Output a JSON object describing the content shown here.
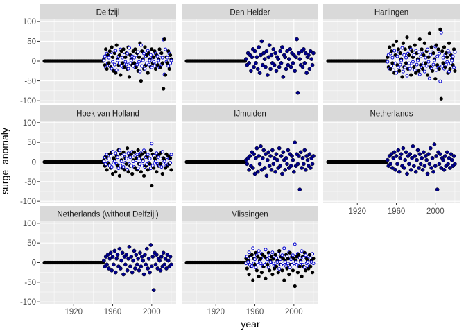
{
  "chart_data": {
    "type": "scatter",
    "xlabel": "year",
    "ylabel": "surge_anomaly",
    "xlim": [
      1885,
      2025
    ],
    "ylim": [
      -105,
      105
    ],
    "x_ticks": [
      1920,
      1960,
      2000
    ],
    "y_ticks": [
      -100,
      -50,
      0,
      50,
      100
    ],
    "grid": true,
    "colors": {
      "panel_background": "#ebebeb",
      "strip_background": "#d9d9d9",
      "grid_major": "#ffffff",
      "point_fill_a": "#000000",
      "point_fill_b": "#00008b",
      "point_open_b": "#ffffff",
      "point_outline_b": "#0000cd"
    },
    "panels": [
      {
        "title": "Delfzijl",
        "style": "mixed",
        "y": [
          5,
          -10,
          30,
          -20,
          15,
          -5,
          25,
          -15,
          35,
          10,
          -25,
          20,
          -30,
          40,
          5,
          -10,
          15,
          -35,
          25,
          -5,
          30,
          -15,
          10,
          20,
          -20,
          35,
          -40,
          15,
          5,
          -10,
          25,
          -5,
          30,
          -15,
          20,
          -25,
          10,
          45,
          -50,
          25,
          5,
          -20,
          35,
          -10,
          15,
          -30,
          20,
          5,
          -15,
          30,
          -5,
          10,
          25,
          -20,
          15,
          -10,
          5,
          30,
          -15,
          20,
          -5,
          -70,
          55,
          -35,
          10,
          -5,
          25,
          -20,
          15,
          5
        ]
      },
      {
        "title": "Den Helder",
        "style": "solid",
        "y": [
          5,
          -10,
          20,
          -5,
          15,
          -25,
          10,
          30,
          -15,
          25,
          -5,
          10,
          -20,
          35,
          -30,
          15,
          50,
          -10,
          20,
          5,
          -15,
          25,
          -35,
          10,
          40,
          -20,
          15,
          -5,
          30,
          -10,
          20,
          -25,
          10,
          5,
          -15,
          25,
          -5,
          35,
          -40,
          15,
          10,
          -20,
          25,
          -10,
          5,
          30,
          -15,
          20,
          -5,
          15,
          -25,
          10,
          55,
          -80,
          20,
          5,
          -10,
          25,
          -15,
          30,
          -5,
          20,
          -30,
          10,
          15,
          -20,
          25,
          5,
          -10,
          20
        ]
      },
      {
        "title": "Harlingen",
        "style": "mixed",
        "y": [
          10,
          -15,
          35,
          -20,
          25,
          -5,
          40,
          -30,
          15,
          50,
          -10,
          30,
          -25,
          20,
          5,
          -40,
          45,
          -15,
          30,
          -5,
          60,
          -20,
          15,
          35,
          -35,
          25,
          10,
          -15,
          40,
          -30,
          20,
          5,
          -25,
          55,
          -10,
          30,
          -20,
          15,
          45,
          -5,
          25,
          -35,
          10,
          70,
          -15,
          35,
          -25,
          20,
          5,
          -45,
          40,
          -10,
          30,
          -20,
          80,
          -95,
          25,
          -5,
          35,
          -15,
          20,
          10,
          -30,
          45,
          -20,
          15,
          5,
          -10,
          30,
          -25
        ]
      },
      {
        "title": "Hoek van Holland",
        "style": "mixed",
        "y": [
          5,
          -10,
          15,
          -20,
          10,
          -5,
          20,
          -15,
          25,
          -30,
          10,
          5,
          -25,
          15,
          -10,
          30,
          -35,
          20,
          5,
          -15,
          25,
          -20,
          10,
          -5,
          35,
          -25,
          15,
          -10,
          20,
          -30,
          5,
          25,
          -15,
          10,
          -20,
          30,
          -5,
          15,
          -25,
          20,
          5,
          -35,
          25,
          -10,
          15,
          -20,
          10,
          -5,
          30,
          -60,
          20,
          -15,
          10,
          5,
          -25,
          15,
          -10,
          20,
          -5,
          25,
          -30,
          10,
          5,
          -15,
          20,
          -10,
          15,
          -5,
          10,
          -20
        ]
      },
      {
        "title": "IJmuiden",
        "style": "solid",
        "y": [
          5,
          -5,
          10,
          -20,
          15,
          -10,
          25,
          -15,
          20,
          -30,
          10,
          35,
          -25,
          15,
          -5,
          40,
          -20,
          10,
          30,
          -15,
          20,
          -35,
          5,
          25,
          -10,
          15,
          -20,
          30,
          -5,
          10,
          -25,
          20,
          5,
          -15,
          35,
          -10,
          15,
          -30,
          25,
          5,
          -20,
          10,
          -5,
          30,
          -15,
          20,
          -10,
          15,
          5,
          -25,
          50,
          -10,
          20,
          -5,
          15,
          -70,
          25,
          -15,
          10,
          -5,
          30,
          -20,
          15,
          5,
          -10,
          20,
          -15,
          10,
          -5,
          15
        ]
      },
      {
        "title": "Netherlands",
        "style": "solid",
        "y": [
          5,
          -10,
          15,
          -5,
          20,
          -15,
          10,
          25,
          -20,
          15,
          -5,
          30,
          -25,
          10,
          20,
          -10,
          35,
          -15,
          5,
          25,
          -30,
          15,
          -5,
          20,
          -20,
          10,
          40,
          -10,
          15,
          -25,
          5,
          30,
          -15,
          20,
          -5,
          10,
          -20,
          25,
          -10,
          15,
          5,
          -30,
          20,
          -5,
          35,
          -15,
          10,
          -25,
          45,
          -10,
          15,
          -70,
          25,
          -5,
          20,
          -15,
          10,
          5,
          -20,
          15,
          -10,
          25,
          -5,
          10,
          -15,
          20,
          5,
          -10,
          15,
          -5
        ]
      },
      {
        "title": "Netherlands (without Delfzijl)",
        "style": "solid",
        "y": [
          5,
          -10,
          15,
          -5,
          20,
          -15,
          10,
          25,
          -20,
          15,
          -5,
          30,
          -25,
          10,
          20,
          -10,
          35,
          -15,
          5,
          25,
          -30,
          15,
          -5,
          20,
          -20,
          10,
          40,
          -10,
          15,
          -25,
          5,
          30,
          -15,
          20,
          -5,
          10,
          -20,
          25,
          -10,
          15,
          5,
          -30,
          20,
          -5,
          35,
          -15,
          10,
          -25,
          45,
          -10,
          15,
          -70,
          25,
          -5,
          20,
          -15,
          10,
          5,
          -20,
          15,
          -10,
          25,
          -5,
          10,
          -15,
          20,
          5,
          -10,
          15,
          -5
        ]
      },
      {
        "title": "Vlissingen",
        "style": "mixed",
        "y": [
          10,
          -15,
          5,
          -30,
          15,
          -10,
          20,
          -45,
          10,
          -5,
          25,
          -20,
          15,
          -35,
          5,
          10,
          -25,
          20,
          -10,
          15,
          -40,
          10,
          -5,
          25,
          -20,
          5,
          15,
          -30,
          10,
          -15,
          20,
          -10,
          5,
          -25,
          30,
          -5,
          15,
          -20,
          10,
          -45,
          5,
          20,
          -15,
          10,
          -30,
          25,
          -5,
          15,
          -20,
          10,
          -60,
          5,
          15,
          -25,
          20,
          -10,
          5,
          -35,
          15,
          -10,
          25,
          -20,
          10,
          5,
          -15,
          20,
          -10,
          5,
          -25,
          10
        ]
      }
    ]
  }
}
